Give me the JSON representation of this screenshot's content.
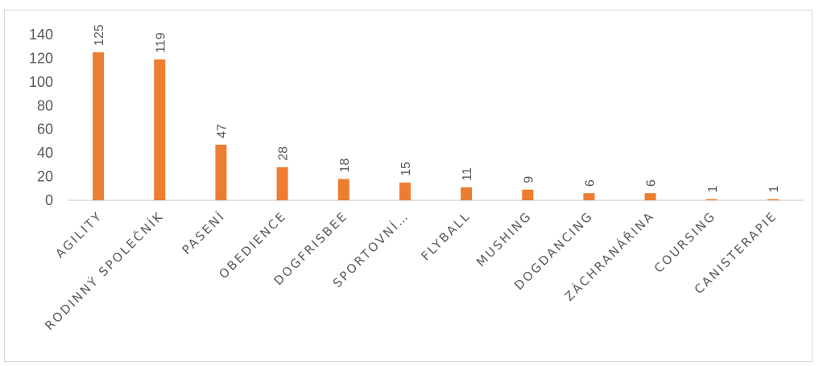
{
  "chart_data": {
    "type": "bar",
    "title": "",
    "xlabel": "",
    "ylabel": "",
    "categories": [
      "AGILITY",
      "RODINNÝ SPOLEČNÍK",
      "PASENÍ",
      "OBEDIENCE",
      "DOGFRISBEE",
      "SPORTOVNÍ…",
      "FLYBALL",
      "MUSHING",
      "DOGDANCING",
      "ZÁCHRANÁŘINA",
      "COURSING",
      "CANISTERAPIE"
    ],
    "values": [
      125,
      119,
      47,
      28,
      18,
      15,
      11,
      9,
      6,
      6,
      1,
      1
    ],
    "data_labels": [
      "125",
      "119",
      "47",
      "28",
      "18",
      "15",
      "11",
      "9",
      "6",
      "6",
      "1",
      "1"
    ],
    "ylim": [
      0,
      140
    ],
    "yticks": [
      0,
      20,
      40,
      60,
      80,
      100,
      120,
      140
    ],
    "ytick_labels": [
      "0",
      "20",
      "40",
      "60",
      "80",
      "100",
      "120",
      "140"
    ],
    "grid": false,
    "legend": "none",
    "colors": {
      "bar": "#ED7D31",
      "text": "#595959",
      "axis": "#d9d9d9"
    }
  }
}
